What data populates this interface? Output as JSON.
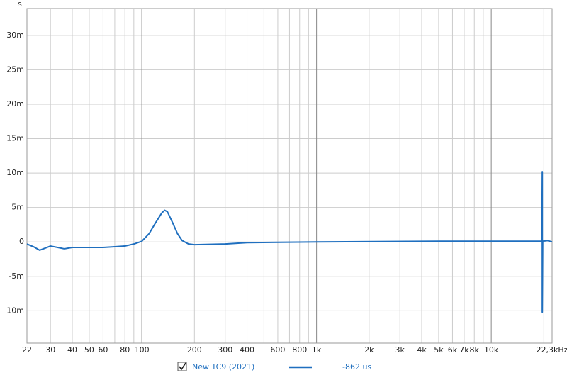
{
  "chart_data": {
    "type": "line",
    "y_axis_label": "s",
    "log_x": true,
    "grid": true,
    "xlim": [
      22,
      22300
    ],
    "ylim": [
      -0.0147,
      0.0339
    ],
    "yticks": [
      {
        "value": -0.01,
        "label": "-10m"
      },
      {
        "value": -0.005,
        "label": "-5m"
      },
      0,
      {
        "value": 0.005,
        "label": "5m"
      },
      {
        "value": 0.01,
        "label": "10m"
      },
      {
        "value": 0.015,
        "label": "15m"
      },
      {
        "value": 0.02,
        "label": "20m"
      },
      {
        "value": 0.025,
        "label": "25m"
      },
      {
        "value": 0.03,
        "label": "30m"
      }
    ],
    "xticks": [
      22,
      30,
      40,
      50,
      60,
      80,
      100,
      200,
      300,
      400,
      600,
      800,
      {
        "value": 1000,
        "label": "1k"
      },
      {
        "value": 2000,
        "label": "2k"
      },
      {
        "value": 3000,
        "label": "3k"
      },
      {
        "value": 4000,
        "label": "4k"
      },
      {
        "value": 5000,
        "label": "5k"
      },
      {
        "value": 6000,
        "label": "6k"
      },
      {
        "value": 7000,
        "label": "7k"
      },
      {
        "value": 8000,
        "label": "8k"
      },
      {
        "value": 10000,
        "label": "10k"
      },
      {
        "value": 22300,
        "label": "22,3kHz"
      }
    ],
    "minor_xgrid": [
      70,
      90,
      500,
      700,
      900,
      9000,
      20000
    ],
    "series": [
      {
        "name": "New TC9 (2021)",
        "color": "#1f6fbf",
        "x": [
          22,
          24,
          26,
          28,
          30,
          33,
          36,
          40,
          50,
          60,
          70,
          80,
          90,
          100,
          110,
          120,
          130,
          135,
          140,
          150,
          160,
          170,
          185,
          200,
          300,
          400,
          1000,
          5000,
          10000,
          19500,
          19600,
          19600,
          19700,
          21000,
          22300
        ],
        "values": [
          -0.0003,
          -0.0007,
          -0.0012,
          -0.0009,
          -0.0006,
          -0.0008,
          -0.001,
          -0.0008,
          -0.0008,
          -0.0008,
          -0.0007,
          -0.0006,
          -0.0003,
          0.0001,
          0.0012,
          0.0028,
          0.0042,
          0.0046,
          0.0044,
          0.0028,
          0.0012,
          0.0002,
          -0.0003,
          -0.0004,
          -0.0003,
          -0.0001,
          0,
          0.0001,
          0.0001,
          0.0001,
          0.0102,
          -0.0102,
          0.0001,
          0.0002,
          0
        ]
      }
    ],
    "legend_note": "-862 us"
  }
}
